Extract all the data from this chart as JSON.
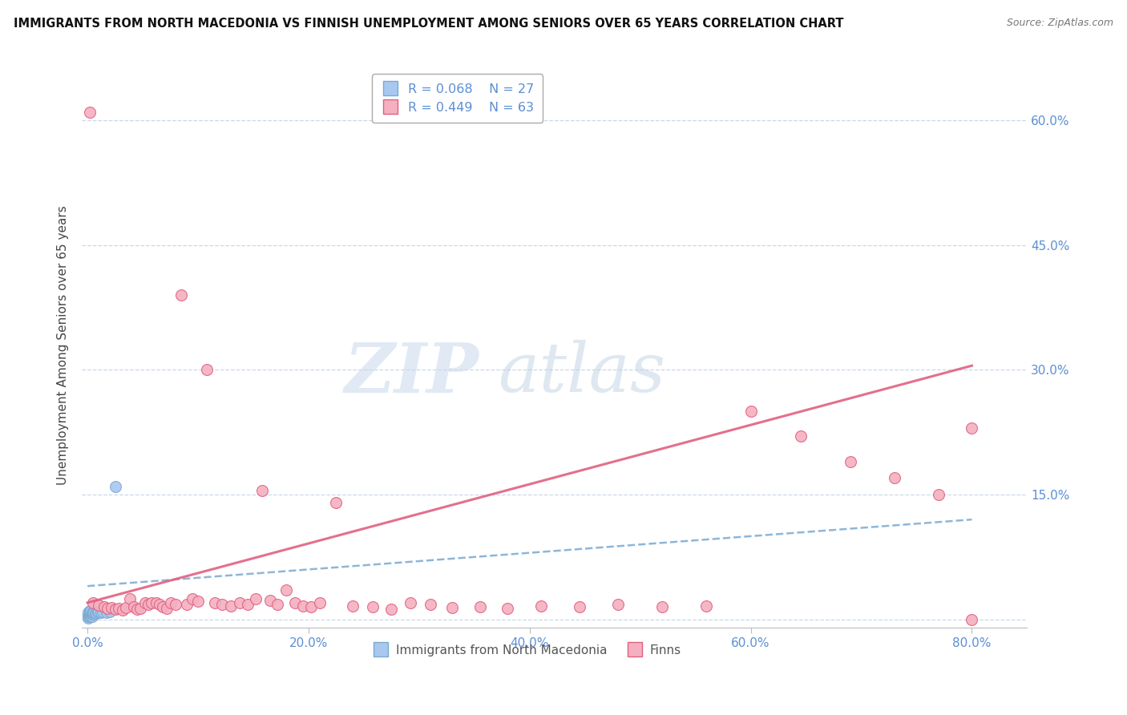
{
  "title": "IMMIGRANTS FROM NORTH MACEDONIA VS FINNISH UNEMPLOYMENT AMONG SENIORS OVER 65 YEARS CORRELATION CHART",
  "source": "Source: ZipAtlas.com",
  "ylabel": "Unemployment Among Seniors over 65 years",
  "ytick_vals": [
    0.0,
    0.15,
    0.3,
    0.45,
    0.6
  ],
  "ytick_labels": [
    "",
    "15.0%",
    "30.0%",
    "45.0%",
    "60.0%"
  ],
  "xtick_vals": [
    0.0,
    0.2,
    0.4,
    0.6,
    0.8
  ],
  "xtick_labels": [
    "0.0%",
    "20.0%",
    "40.0%",
    "60.0%",
    "80.0%"
  ],
  "watermark_zip": "ZIP",
  "watermark_atlas": "atlas",
  "legend_blue_r": "R = 0.068",
  "legend_blue_n": "N = 27",
  "legend_pink_r": "R = 0.449",
  "legend_pink_n": "N = 63",
  "legend_blue_label": "Immigrants from North Macedonia",
  "legend_pink_label": "Finns",
  "blue_scatter_color": "#a8c8f0",
  "blue_edge_color": "#7aaad0",
  "blue_line_color": "#7aaad0",
  "pink_scatter_color": "#f4b0c0",
  "pink_edge_color": "#e06080",
  "pink_line_color": "#e06080",
  "tick_color": "#5b8fd4",
  "grid_color": "#c8d8e8",
  "blue_x": [
    0.001,
    0.001,
    0.001,
    0.001,
    0.002,
    0.002,
    0.002,
    0.002,
    0.003,
    0.003,
    0.003,
    0.003,
    0.004,
    0.004,
    0.004,
    0.005,
    0.005,
    0.006,
    0.007,
    0.008,
    0.009,
    0.01,
    0.012,
    0.014,
    0.017,
    0.02,
    0.025
  ],
  "blue_y": [
    0.002,
    0.004,
    0.006,
    0.008,
    0.004,
    0.006,
    0.008,
    0.01,
    0.004,
    0.006,
    0.008,
    0.01,
    0.004,
    0.006,
    0.008,
    0.006,
    0.008,
    0.008,
    0.007,
    0.007,
    0.008,
    0.009,
    0.008,
    0.009,
    0.008,
    0.009,
    0.16
  ],
  "pink_x": [
    0.005,
    0.01,
    0.015,
    0.018,
    0.022,
    0.025,
    0.028,
    0.032,
    0.035,
    0.038,
    0.042,
    0.045,
    0.048,
    0.052,
    0.055,
    0.058,
    0.062,
    0.065,
    0.068,
    0.072,
    0.075,
    0.08,
    0.085,
    0.09,
    0.095,
    0.1,
    0.108,
    0.115,
    0.122,
    0.13,
    0.138,
    0.145,
    0.152,
    0.158,
    0.165,
    0.172,
    0.18,
    0.188,
    0.195,
    0.202,
    0.21,
    0.225,
    0.24,
    0.258,
    0.275,
    0.292,
    0.31,
    0.33,
    0.355,
    0.38,
    0.41,
    0.445,
    0.48,
    0.52,
    0.56,
    0.6,
    0.645,
    0.69,
    0.73,
    0.77,
    0.8,
    0.8,
    0.002
  ],
  "pink_y": [
    0.02,
    0.017,
    0.015,
    0.013,
    0.014,
    0.012,
    0.013,
    0.011,
    0.014,
    0.025,
    0.015,
    0.012,
    0.013,
    0.02,
    0.018,
    0.02,
    0.02,
    0.018,
    0.015,
    0.013,
    0.02,
    0.018,
    0.39,
    0.018,
    0.025,
    0.022,
    0.3,
    0.02,
    0.018,
    0.016,
    0.02,
    0.018,
    0.025,
    0.155,
    0.023,
    0.018,
    0.035,
    0.02,
    0.016,
    0.015,
    0.02,
    0.14,
    0.016,
    0.015,
    0.012,
    0.02,
    0.018,
    0.014,
    0.015,
    0.013,
    0.016,
    0.015,
    0.018,
    0.015,
    0.016,
    0.25,
    0.22,
    0.19,
    0.17,
    0.15,
    0.23,
    0.0,
    0.61
  ],
  "blue_trend_x": [
    0.0,
    0.8
  ],
  "blue_trend_y": [
    0.04,
    0.12
  ],
  "pink_trend_x": [
    0.0,
    0.8
  ],
  "pink_trend_y": [
    0.02,
    0.305
  ],
  "xlim": [
    -0.005,
    0.85
  ],
  "ylim": [
    -0.01,
    0.67
  ]
}
